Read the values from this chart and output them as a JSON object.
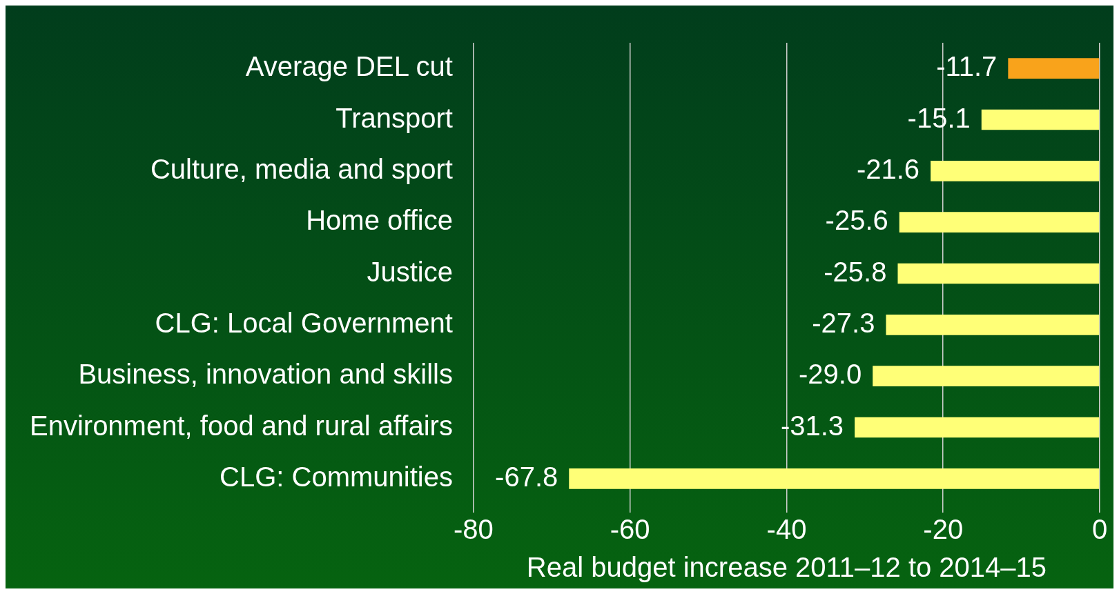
{
  "chart_data": {
    "type": "bar",
    "orientation": "horizontal",
    "categories": [
      "Average DEL cut",
      "Transport",
      "Culture, media and sport",
      "Home office",
      "Justice",
      "CLG: Local Government",
      "Business, innovation and skills",
      "Environment, food and rural affairs",
      "CLG: Communities"
    ],
    "values": [
      -11.7,
      -15.1,
      -21.6,
      -25.6,
      -25.8,
      -27.3,
      -29.0,
      -31.3,
      -67.8
    ],
    "value_labels": [
      "-11.7",
      "-15.1",
      "-21.6",
      "-25.6",
      "-25.8",
      "-27.3",
      "-29.0",
      "-31.3",
      "-67.8"
    ],
    "colors": [
      "#f9a31b",
      "#ffff77",
      "#ffff77",
      "#ffff77",
      "#ffff77",
      "#ffff77",
      "#ffff77",
      "#ffff77",
      "#ffff77"
    ],
    "xlabel": "Real budget increase 2011–12 to 2014–15",
    "xlim": [
      -80,
      0
    ],
    "xticks": [
      -80,
      -60,
      -40,
      -20,
      0
    ],
    "grid": "x",
    "legend": false
  }
}
